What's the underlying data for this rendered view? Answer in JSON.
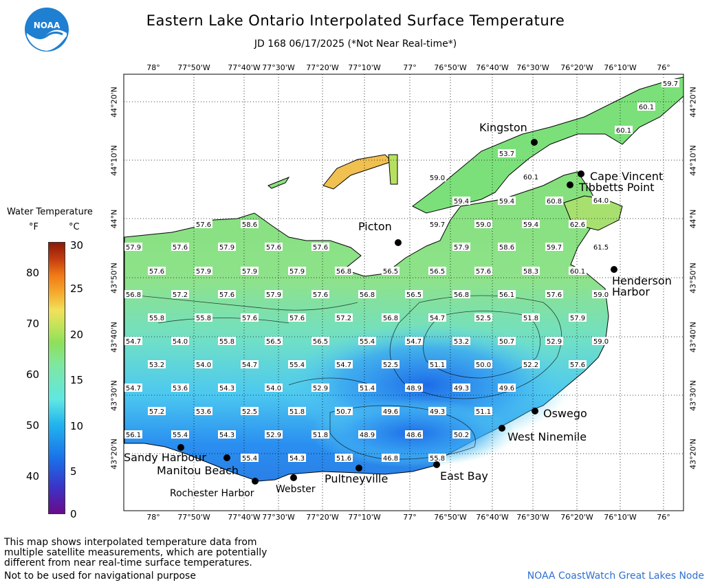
{
  "header": {
    "title": "Eastern Lake Ontario Interpolated Surface Temperature",
    "subtitle": "JD 168 06/17/2025 (*Not Near Real-time*)"
  },
  "map": {
    "longitudes": [
      "78°",
      "77°50'W",
      "77°40'W",
      "77°30'W",
      "77°20'W",
      "77°10'W",
      "77°",
      "76°50'W",
      "76°40'W",
      "76°30'W",
      "76°20'W",
      "76°10'W",
      "76°"
    ],
    "latitudes": [
      "44°20'N",
      "44°10'N",
      "44°N",
      "43°50'N",
      "43°40'N",
      "43°30'N",
      "43°20'N"
    ],
    "cities": [
      {
        "name": "Kingston"
      },
      {
        "name": "Cape Vincent"
      },
      {
        "name": "Tibbetts Point"
      },
      {
        "name": "Picton"
      },
      {
        "name": "Henderson Harbor"
      },
      {
        "name": "Oswego"
      },
      {
        "name": "West Ninemile"
      },
      {
        "name": "East Bay"
      },
      {
        "name": "Pultneyville"
      },
      {
        "name": "Webster"
      },
      {
        "name": "Rochester Harbor"
      },
      {
        "name": "Manitou Beach"
      },
      {
        "name": "Sandy Harbour"
      }
    ],
    "temperatures": [
      "59.7",
      "60.1",
      "60.1",
      "53.7",
      "60.1",
      "59.0",
      "59.4",
      "59.4",
      "60.8",
      "64.0",
      "57.6",
      "58.6",
      "59.7",
      "59.0",
      "59.4",
      "62.6",
      "57.9",
      "57.6",
      "57.9",
      "57.6",
      "57.6",
      "57.9",
      "58.6",
      "59.7",
      "61.5",
      "57.6",
      "57.9",
      "57.9",
      "57.9",
      "56.8",
      "56.5",
      "56.5",
      "57.6",
      "58.3",
      "60.1",
      "56.8",
      "57.2",
      "57.6",
      "57.9",
      "57.6",
      "56.8",
      "56.5",
      "56.8",
      "56.1",
      "57.6",
      "59.0",
      "55.8",
      "55.8",
      "57.6",
      "57.6",
      "57.2",
      "56.8",
      "54.7",
      "52.5",
      "51.8",
      "57.9",
      "54.7",
      "54.0",
      "55.8",
      "56.5",
      "56.5",
      "55.4",
      "54.7",
      "53.2",
      "50.7",
      "52.9",
      "59.0",
      "53.2",
      "54.0",
      "54.7",
      "55.4",
      "54.7",
      "52.5",
      "51.1",
      "50.0",
      "52.2",
      "57.6",
      "54.7",
      "53.6",
      "54.3",
      "54.0",
      "52.9",
      "51.4",
      "48.9",
      "49.3",
      "49.6",
      "57.2",
      "53.6",
      "52.5",
      "51.8",
      "50.7",
      "49.6",
      "49.3",
      "51.1",
      "56.1",
      "55.4",
      "54.3",
      "52.9",
      "51.8",
      "48.9",
      "48.6",
      "50.2",
      "55.4",
      "54.3",
      "51.6",
      "46.8",
      "55.8"
    ]
  },
  "legend": {
    "title": "Water Temperature",
    "unit_f": "°F",
    "unit_c": "°C",
    "f_ticks": [
      "80",
      "70",
      "60",
      "50",
      "40"
    ],
    "c_ticks": [
      "30",
      "25",
      "20",
      "15",
      "10",
      "5",
      "0"
    ]
  },
  "footer": {
    "lines": [
      "This map shows interpolated temperature data from",
      "multiple satellite measurements, which are potentially",
      "different from near real-time surface temperatures."
    ],
    "nav_note": "Not to be used for navigational purpose",
    "credit": "NOAA CoastWatch Great Lakes Node"
  }
}
